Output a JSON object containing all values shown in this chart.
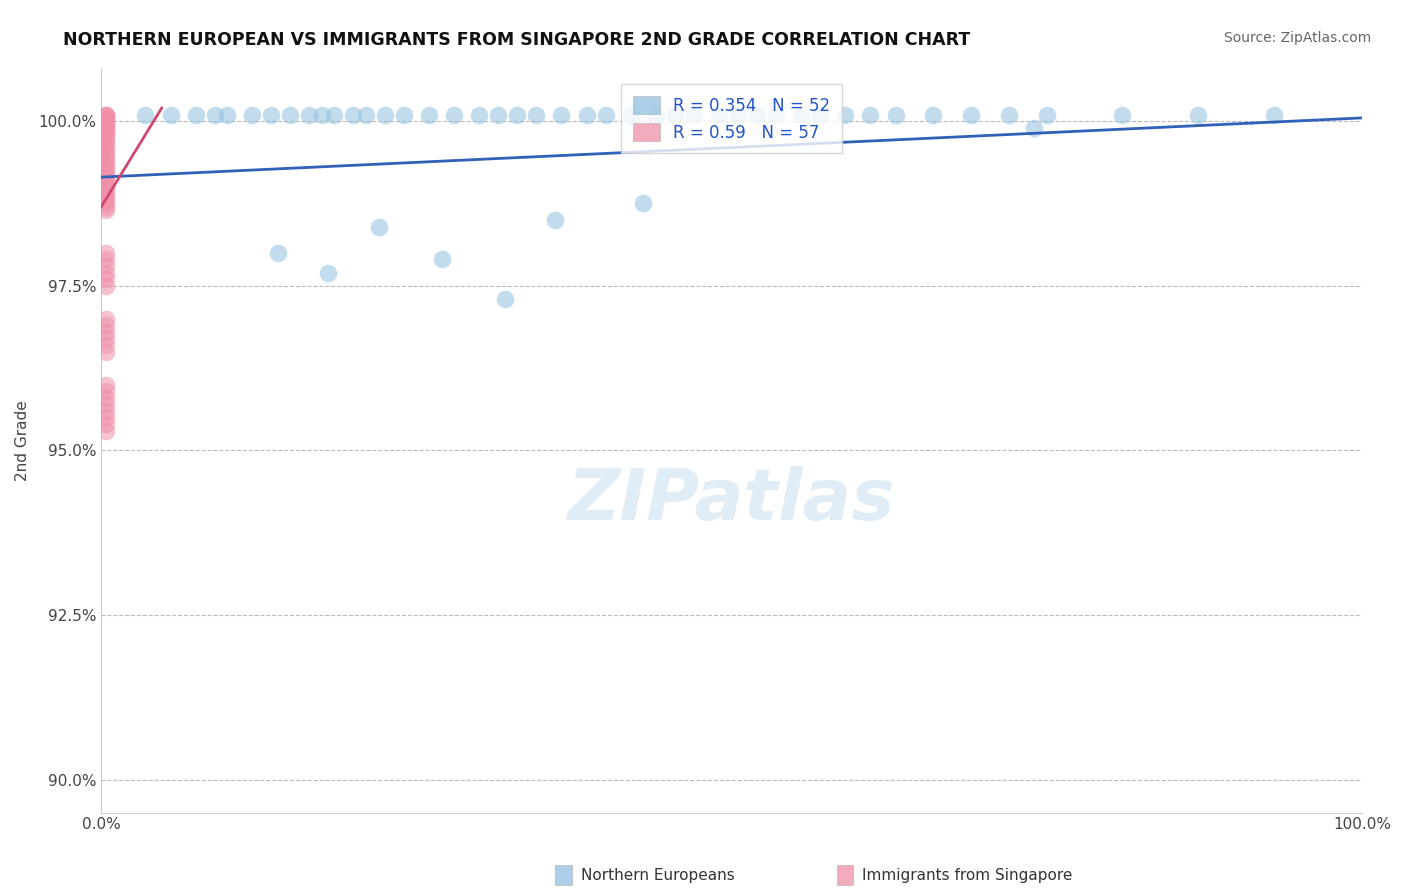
{
  "title": "NORTHERN EUROPEAN VS IMMIGRANTS FROM SINGAPORE 2ND GRADE CORRELATION CHART",
  "source": "Source: ZipAtlas.com",
  "ylabel": "2nd Grade",
  "xlim": [
    0.0,
    1.0
  ],
  "ylim": [
    0.895,
    1.008
  ],
  "yticks": [
    0.9,
    0.925,
    0.95,
    0.975,
    1.0
  ],
  "ytick_labels": [
    "90.0%",
    "92.5%",
    "95.0%",
    "97.5%",
    "100.0%"
  ],
  "xtick_labels": [
    "0.0%",
    "100.0%"
  ],
  "xtick_vals": [
    0.0,
    1.0
  ],
  "blue_color": "#90c0e0",
  "pink_color": "#f090a8",
  "blue_line_color": "#3060b8",
  "pink_line_color": "#d04870",
  "grid_color": "#bbbbbb",
  "scatter_size": 160,
  "scatter_alpha": 0.55,
  "watermark_color": "#c8dff0",
  "watermark_alpha": 0.55,
  "background_color": "#ffffff",
  "blue_R": 0.354,
  "blue_N": 52,
  "pink_R": 0.59,
  "pink_N": 57,
  "blue_x": [
    0.035,
    0.055,
    0.075,
    0.09,
    0.1,
    0.12,
    0.135,
    0.15,
    0.165,
    0.175,
    0.185,
    0.2,
    0.21,
    0.225,
    0.24,
    0.26,
    0.28,
    0.3,
    0.315,
    0.33,
    0.345,
    0.365,
    0.385,
    0.4,
    0.42,
    0.44,
    0.455,
    0.47,
    0.49,
    0.505,
    0.52,
    0.535,
    0.555,
    0.57,
    0.59,
    0.61,
    0.63,
    0.66,
    0.69,
    0.72,
    0.75,
    0.81,
    0.87,
    0.93,
    0.14,
    0.18,
    0.22,
    0.27,
    0.32,
    0.36,
    0.43,
    0.74
  ],
  "blue_y": [
    1.001,
    1.001,
    1.001,
    1.001,
    1.001,
    1.001,
    1.001,
    1.001,
    1.001,
    1.001,
    1.001,
    1.001,
    1.001,
    1.001,
    1.001,
    1.001,
    1.001,
    1.001,
    1.001,
    1.001,
    1.001,
    1.001,
    1.001,
    1.001,
    1.001,
    1.001,
    1.001,
    1.001,
    1.001,
    1.001,
    1.001,
    1.001,
    1.001,
    1.001,
    1.001,
    1.001,
    1.001,
    1.001,
    1.001,
    1.001,
    1.001,
    1.001,
    1.001,
    1.001,
    0.98,
    0.977,
    0.984,
    0.979,
    0.973,
    0.985,
    0.9875,
    0.999
  ],
  "pink_x": [
    0.004,
    0.004,
    0.004,
    0.004,
    0.004,
    0.004,
    0.004,
    0.004,
    0.004,
    0.004,
    0.004,
    0.004,
    0.004,
    0.004,
    0.004,
    0.004,
    0.004,
    0.004,
    0.004,
    0.004,
    0.004,
    0.004,
    0.004,
    0.004,
    0.004,
    0.004,
    0.004,
    0.004,
    0.004,
    0.004,
    0.004,
    0.004,
    0.004,
    0.004,
    0.004,
    0.004,
    0.004,
    0.004,
    0.004,
    0.004,
    0.004,
    0.004,
    0.004,
    0.004,
    0.004,
    0.004,
    0.004,
    0.004,
    0.004,
    0.004,
    0.004,
    0.004,
    0.004,
    0.004,
    0.004,
    0.004,
    0.004
  ],
  "pink_y": [
    1.001,
    1.001,
    1.001,
    1.0005,
    1.0005,
    1.0,
    1.0,
    0.9995,
    0.9995,
    0.999,
    0.999,
    0.9985,
    0.998,
    0.998,
    0.9975,
    0.997,
    0.9965,
    0.996,
    0.9955,
    0.995,
    0.9945,
    0.994,
    0.9935,
    0.993,
    0.9925,
    0.992,
    0.9915,
    0.991,
    0.9905,
    0.99,
    0.9895,
    0.989,
    0.9885,
    0.988,
    0.9875,
    0.987,
    0.9865,
    0.98,
    0.979,
    0.978,
    0.977,
    0.976,
    0.975,
    0.97,
    0.969,
    0.968,
    0.967,
    0.966,
    0.965,
    0.96,
    0.959,
    0.958,
    0.957,
    0.956,
    0.955,
    0.954,
    0.953
  ],
  "blue_line_x0": 0.0,
  "blue_line_x1": 1.0,
  "blue_line_y0": 0.9915,
  "blue_line_y1": 1.0005,
  "pink_line_x0": 0.0,
  "pink_line_x1": 0.048,
  "pink_line_y0": 0.987,
  "pink_line_y1": 1.002
}
